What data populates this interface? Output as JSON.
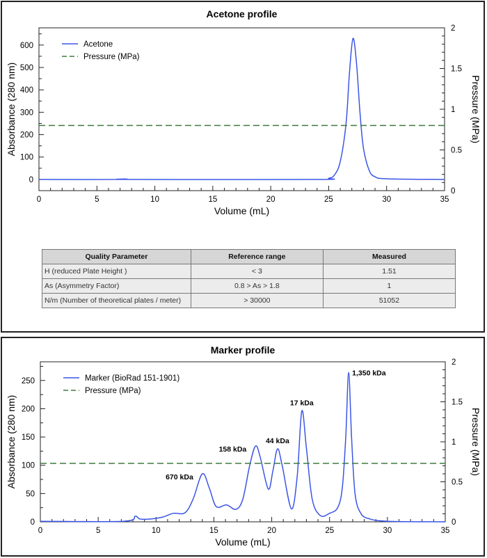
{
  "chart_data": [
    {
      "type": "line",
      "title": "Acetone profile",
      "xlabel": "Volume (mL)",
      "ylabel": "Absorbance (280 nm)",
      "y2label": "Pressure (MPa)",
      "xlim": [
        0,
        35
      ],
      "ylim": [
        -50,
        677
      ],
      "y2lim": [
        0,
        2
      ],
      "xticks": [
        0,
        5,
        10,
        15,
        20,
        25,
        30,
        35
      ],
      "yticks": [
        0,
        100,
        200,
        300,
        400,
        500,
        600
      ],
      "y2ticks": [
        0,
        0.5,
        1,
        1.5,
        2
      ],
      "y2ticklabels": [
        "0",
        "0.5",
        "1",
        "1.5",
        "2"
      ],
      "legend_position": "top-left",
      "series": [
        {
          "name": "Acetone",
          "color": "#3b55e6",
          "axis": "left",
          "x": [
            0,
            7,
            7.5,
            8,
            24,
            25,
            25.5,
            26,
            26.5,
            26.8,
            27.1,
            27.4,
            27.7,
            28,
            28.5,
            29,
            30,
            35
          ],
          "y": [
            0,
            0,
            2,
            0,
            0,
            5,
            20,
            80,
            250,
            480,
            630,
            520,
            300,
            140,
            40,
            12,
            3,
            0
          ]
        },
        {
          "name": "Pressure (MPa)",
          "color": "#3f7a3f",
          "axis": "right",
          "dashed": true,
          "x": [
            0,
            35
          ],
          "y": [
            0.8,
            0.8
          ]
        }
      ],
      "annotations": []
    },
    {
      "type": "line",
      "title": "Marker profile",
      "xlabel": "Volume (mL)",
      "ylabel": "Absorbance (280 nm)",
      "y2label": "Pressure (MPa)",
      "xlim": [
        0,
        35
      ],
      "ylim": [
        0,
        283
      ],
      "y2lim": [
        0,
        2
      ],
      "xticks": [
        0,
        5,
        10,
        15,
        20,
        25,
        30,
        35
      ],
      "yticks": [
        0,
        50,
        100,
        150,
        200,
        250
      ],
      "y2ticks": [
        0,
        0.5,
        1,
        1.5,
        2
      ],
      "y2ticklabels": [
        "0",
        "0.5",
        "1",
        "1.5",
        "2"
      ],
      "legend_position": "top-left",
      "series": [
        {
          "name": "Marker (BioRad 151-1901)",
          "color": "#3b55e6",
          "axis": "left",
          "x": [
            0,
            7.2,
            8.2,
            8.6,
            9.5,
            10.5,
            11.5,
            12.5,
            13.2,
            14,
            14.6,
            15.2,
            16.1,
            16.9,
            17.5,
            18.1,
            18.6,
            19.0,
            19.7,
            20.1,
            20.5,
            20.9,
            21.7,
            22.2,
            22.6,
            23.0,
            23.5,
            24.2,
            25,
            25.7,
            26.1,
            26.4,
            26.65,
            26.9,
            27.2,
            27.7,
            28.5,
            30,
            35
          ],
          "y": [
            1,
            1,
            10,
            5,
            5,
            8,
            15,
            16,
            40,
            85,
            60,
            27,
            30,
            22,
            40,
            100,
            134,
            115,
            58,
            90,
            129,
            100,
            23,
            80,
            196,
            130,
            40,
            11,
            15,
            25,
            60,
            150,
            264,
            150,
            50,
            15,
            5,
            1,
            0
          ]
        },
        {
          "name": "Pressure (MPa)",
          "color": "#3f7a3f",
          "axis": "right",
          "dashed": true,
          "x": [
            0,
            35
          ],
          "y": [
            0.73,
            0.73
          ]
        }
      ],
      "annotations": [
        {
          "text": "670 kDa",
          "x": 14.0,
          "y": 85
        },
        {
          "text": "158 kDa",
          "x": 18.6,
          "y": 134
        },
        {
          "text": "44 kDa",
          "x": 20.5,
          "y": 129
        },
        {
          "text": "17 kDa",
          "x": 22.6,
          "y": 196
        },
        {
          "text": "1,350 kDa",
          "x": 26.65,
          "y": 264
        }
      ]
    }
  ],
  "quality_table": {
    "headers": [
      "Quality Parameter",
      "Reference range",
      "Measured"
    ],
    "rows": [
      [
        "H (reduced Plate Height )",
        "< 3",
        "1.51"
      ],
      [
        "As (Asymmetry Factor)",
        "0.8 > As > 1.8",
        "1"
      ],
      [
        "N/m (Number of theoretical plates / meter)",
        "> 30000",
        "51052"
      ]
    ]
  }
}
